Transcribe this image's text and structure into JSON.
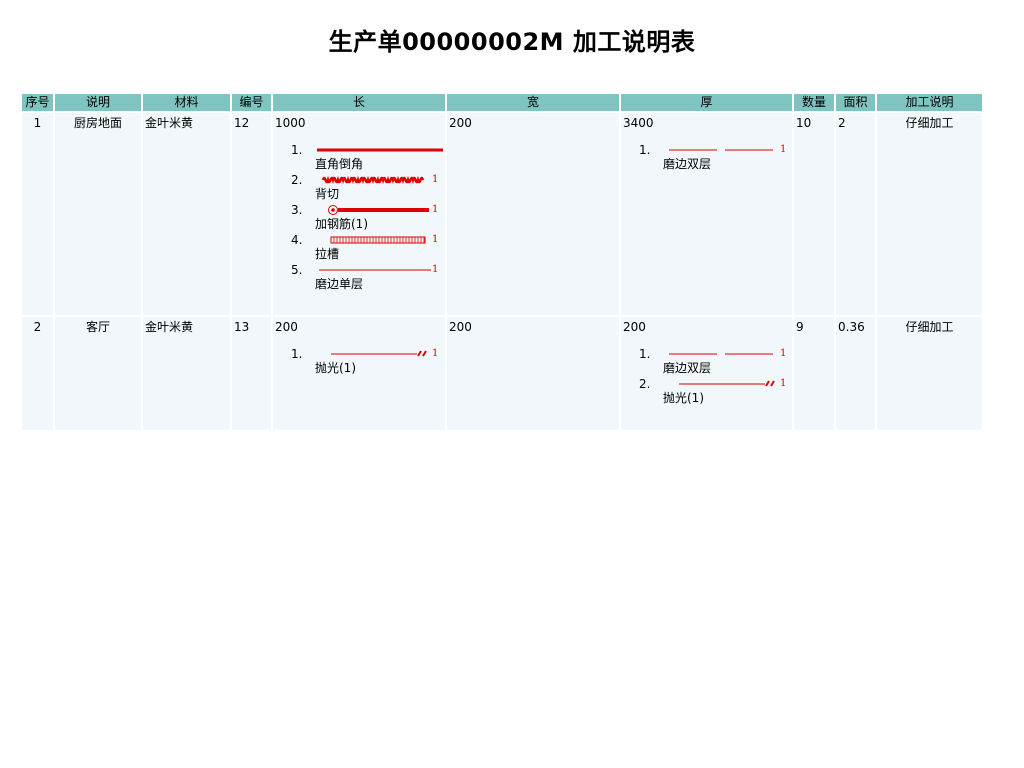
{
  "title": "生产单00000002M 加工说明表",
  "columns": [
    "序号",
    "说明",
    "材料",
    "编号",
    "长",
    "宽",
    "厚",
    "数量",
    "面积",
    "加工说明"
  ],
  "rows": [
    {
      "seq": "1",
      "desc": "厨房地面",
      "material": "金叶米黄",
      "code": "12",
      "length": "1000",
      "width": "200",
      "thickness": "3400",
      "qty": "10",
      "area": "2",
      "process": "仔细加工",
      "length_items": [
        {
          "num": "1.",
          "label": "直角倒角",
          "symbol": "straight-thick-icon",
          "count": ""
        },
        {
          "num": "2.",
          "label": "背切",
          "symbol": "wave-line-icon",
          "count": "1"
        },
        {
          "num": "3.",
          "label": "加钢筋(1)",
          "symbol": "rebar-line-icon",
          "count": "1"
        },
        {
          "num": "4.",
          "label": "拉槽",
          "symbol": "groove-line-icon",
          "count": "1"
        },
        {
          "num": "5.",
          "label": "磨边单层",
          "symbol": "thin-line-icon",
          "count": "1"
        }
      ],
      "width_items": [],
      "thickness_items": [
        {
          "num": "1.",
          "label": "磨边双层",
          "symbol": "double-line-icon",
          "count": "1"
        }
      ]
    },
    {
      "seq": "2",
      "desc": "客厅",
      "material": "金叶米黄",
      "code": "13",
      "length": "200",
      "width": "200",
      "thickness": "200",
      "qty": "9",
      "area": "0.36",
      "process": "仔细加工",
      "length_items": [
        {
          "num": "1.",
          "label": "抛光(1)",
          "symbol": "polish-line-icon",
          "count": "1"
        }
      ],
      "width_items": [],
      "thickness_items": [
        {
          "num": "1.",
          "label": "磨边双层",
          "symbol": "double-line-icon",
          "count": "1"
        },
        {
          "num": "2.",
          "label": "抛光(1)",
          "symbol": "polish-line-icon",
          "count": "1"
        }
      ]
    }
  ],
  "colors": {
    "header_bg": "#7fc4c0",
    "cell_bg": "#f1f7fa",
    "symbol_red": "#e00000"
  }
}
